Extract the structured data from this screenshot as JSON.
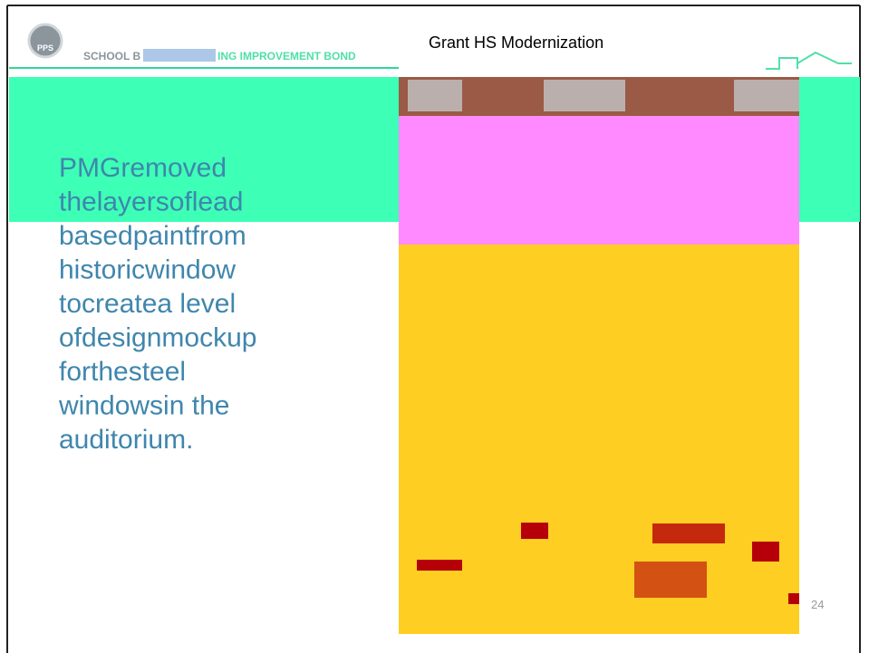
{
  "header": {
    "logo": "PPS",
    "bond_left": "SCHOOL B",
    "bond_right": "ING IMPROVEMENT BOND",
    "title": "Grant HS Modernization"
  },
  "body": {
    "lines": [
      "PMGremoved",
      "thelayersoflead",
      "basedpaintfrom",
      "historicwindow",
      "tocreatea level",
      "ofdesignmockup",
      "forthesteel",
      "windowsin the",
      "auditorium."
    ]
  },
  "footer": {
    "page": "24"
  }
}
